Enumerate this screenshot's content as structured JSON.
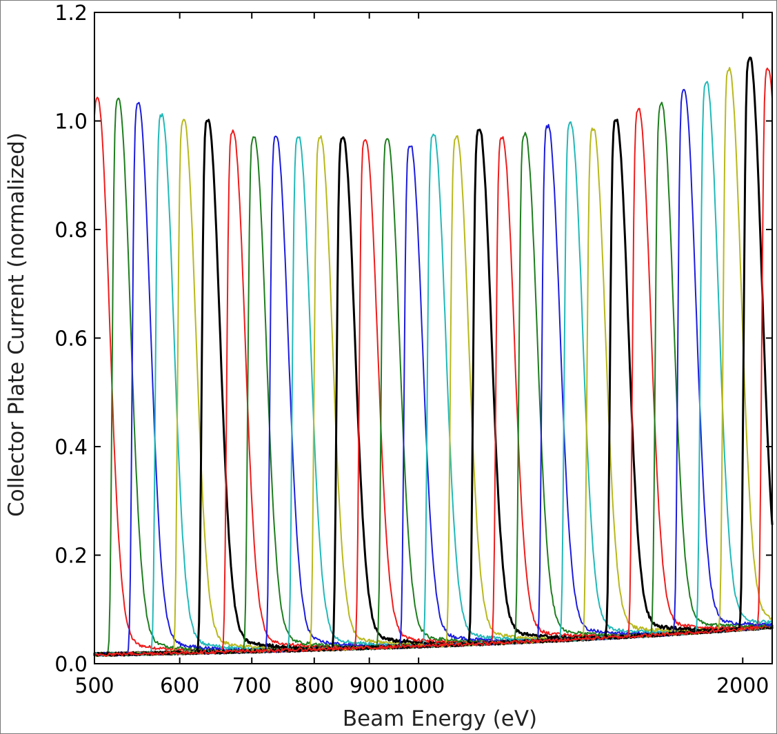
{
  "chart_data": {
    "type": "line",
    "title": "",
    "xlabel": "Beam Energy (eV)",
    "ylabel": "Collector Plate Current (normalized)",
    "x_scale": "log",
    "xlim": [
      500,
      2130
    ],
    "ylim": [
      0,
      1.2
    ],
    "x_ticks": [
      {
        "value": 500,
        "label": "500"
      },
      {
        "value": 600,
        "label": "600"
      },
      {
        "value": 700,
        "label": "700"
      },
      {
        "value": 800,
        "label": "800"
      },
      {
        "value": 900,
        "label": "900"
      },
      {
        "value": 1000,
        "label": "1000"
      },
      {
        "value": 2000,
        "label": "2000"
      }
    ],
    "y_ticks": [
      {
        "value": 0,
        "label": "0.0"
      },
      {
        "value": 0.2,
        "label": "0.2"
      },
      {
        "value": 0.4,
        "label": "0.4"
      },
      {
        "value": 0.6,
        "label": "0.6"
      },
      {
        "value": 0.8,
        "label": "0.8"
      },
      {
        "value": 1.0,
        "label": "1.0"
      },
      {
        "value": 1.2,
        "label": "1.2"
      }
    ],
    "grid": false,
    "legend": "none",
    "colors": {
      "red": "#ee1c1c",
      "green": "#1e7d1e",
      "blue": "#1c1cdd",
      "cyan": "#22b8b8",
      "yellow": "#b8b81e",
      "black": "#000000"
    },
    "peaks": [
      {
        "center": 503,
        "peak": 1.04,
        "color": "red"
      },
      {
        "center": 526,
        "peak": 1.04,
        "color": "green"
      },
      {
        "center": 549,
        "peak": 1.03,
        "color": "blue"
      },
      {
        "center": 577,
        "peak": 1.01,
        "color": "cyan"
      },
      {
        "center": 605,
        "peak": 1.0,
        "color": "yellow"
      },
      {
        "center": 637,
        "peak": 1.0,
        "color": "black"
      },
      {
        "center": 672,
        "peak": 0.98,
        "color": "red"
      },
      {
        "center": 703,
        "peak": 0.97,
        "color": "green"
      },
      {
        "center": 737,
        "peak": 0.97,
        "color": "blue"
      },
      {
        "center": 773,
        "peak": 0.97,
        "color": "cyan"
      },
      {
        "center": 810,
        "peak": 0.97,
        "color": "yellow"
      },
      {
        "center": 850,
        "peak": 0.97,
        "color": "black"
      },
      {
        "center": 892,
        "peak": 0.965,
        "color": "red"
      },
      {
        "center": 935,
        "peak": 0.965,
        "color": "green"
      },
      {
        "center": 982,
        "peak": 0.955,
        "color": "blue"
      },
      {
        "center": 1032,
        "peak": 0.975,
        "color": "cyan"
      },
      {
        "center": 1084,
        "peak": 0.97,
        "color": "yellow"
      },
      {
        "center": 1138,
        "peak": 0.985,
        "color": "black"
      },
      {
        "center": 1195,
        "peak": 0.97,
        "color": "red"
      },
      {
        "center": 1255,
        "peak": 0.975,
        "color": "green"
      },
      {
        "center": 1318,
        "peak": 0.99,
        "color": "blue"
      },
      {
        "center": 1383,
        "peak": 0.995,
        "color": "cyan"
      },
      {
        "center": 1452,
        "peak": 0.985,
        "color": "yellow"
      },
      {
        "center": 1525,
        "peak": 1.0,
        "color": "black"
      },
      {
        "center": 1600,
        "peak": 1.02,
        "color": "red"
      },
      {
        "center": 1680,
        "peak": 1.03,
        "color": "green"
      },
      {
        "center": 1763,
        "peak": 1.055,
        "color": "blue"
      },
      {
        "center": 1850,
        "peak": 1.07,
        "color": "cyan"
      },
      {
        "center": 1942,
        "peak": 1.095,
        "color": "yellow"
      },
      {
        "center": 2030,
        "peak": 1.115,
        "color": "black"
      },
      {
        "center": 2110,
        "peak": 1.095,
        "color": "red"
      }
    ]
  }
}
